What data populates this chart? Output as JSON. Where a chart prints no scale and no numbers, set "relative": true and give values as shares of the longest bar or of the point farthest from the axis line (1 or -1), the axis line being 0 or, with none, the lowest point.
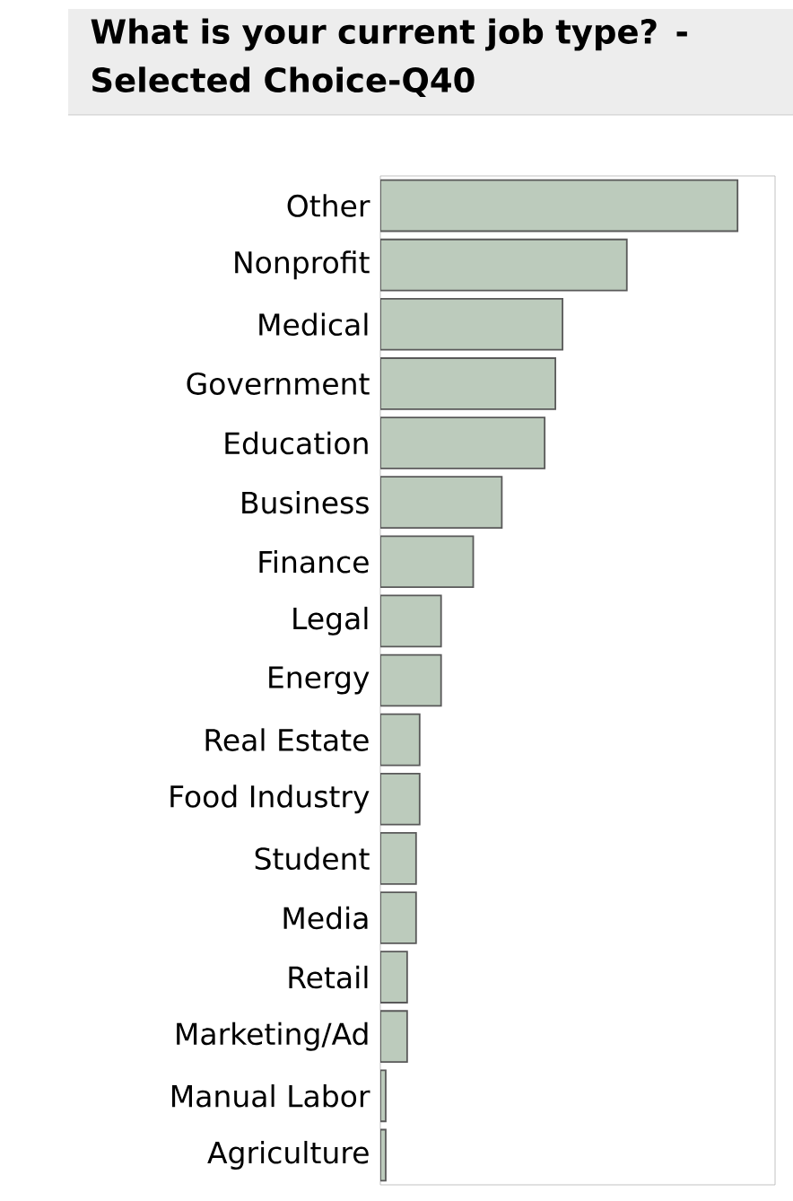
{
  "chart_data": {
    "type": "bar",
    "orientation": "horizontal",
    "relative": true,
    "title": "What is your current job type? - Selected Choice-Q40",
    "categories": [
      "Other",
      "Nonprofit",
      "Medical",
      "Government",
      "Education",
      "Business",
      "Finance",
      "Legal",
      "Energy",
      "Real Estate",
      "Food Industry",
      "Student",
      "Media",
      "Retail",
      "Marketing/Ad",
      "Manual Labor",
      "Agriculture"
    ],
    "values": [
      1,
      0.69,
      0.51,
      0.49,
      0.46,
      0.34,
      0.26,
      0.17,
      0.17,
      0.11,
      0.11,
      0.1,
      0.1,
      0.075,
      0.075,
      0.015,
      0.015
    ],
    "color": "#bccbbc"
  }
}
